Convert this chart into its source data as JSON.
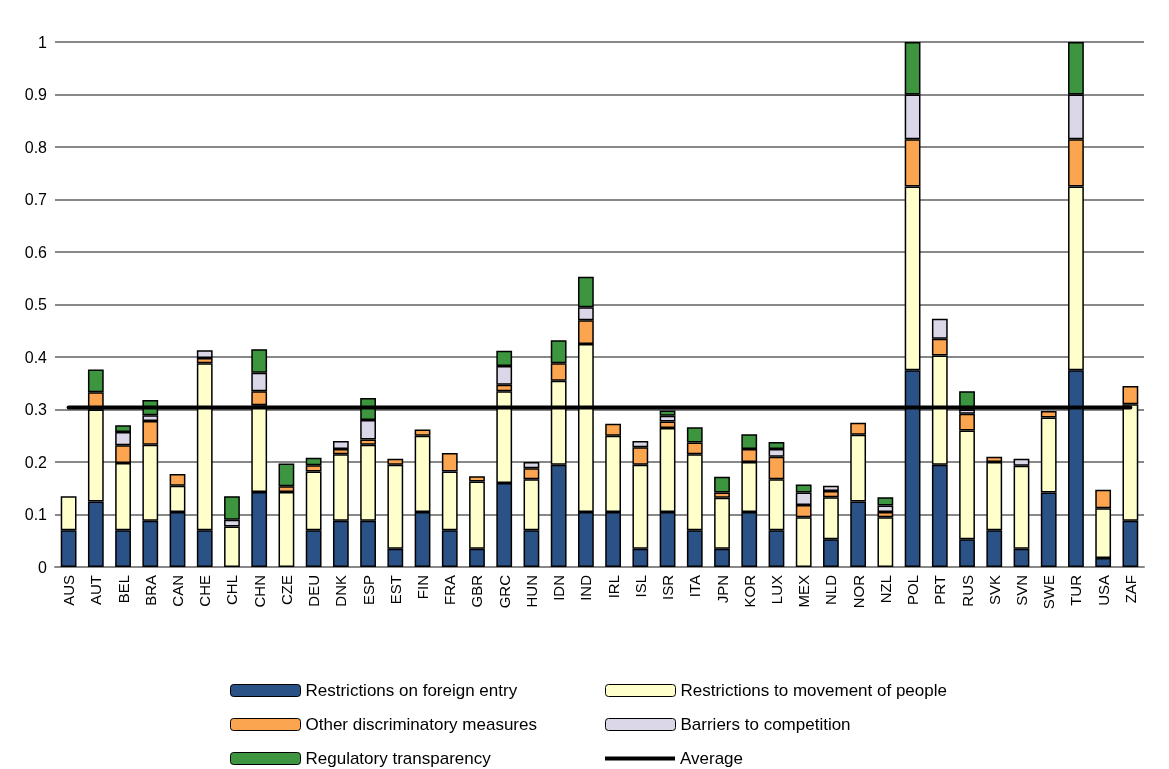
{
  "chart_data": {
    "type": "bar",
    "stacked": true,
    "categories": [
      "AUS",
      "AUT",
      "BEL",
      "BRA",
      "CAN",
      "CHE",
      "CHL",
      "CHN",
      "CZE",
      "DEU",
      "DNK",
      "ESP",
      "EST",
      "FIN",
      "FRA",
      "GBR",
      "GRC",
      "HUN",
      "IDN",
      "IND",
      "IRL",
      "ISL",
      "ISR",
      "ITA",
      "JPN",
      "KOR",
      "LUX",
      "MEX",
      "NLD",
      "NOR",
      "NZL",
      "POL",
      "PRT",
      "RUS",
      "SVK",
      "SVN",
      "SWE",
      "TUR",
      "USA",
      "ZAF"
    ],
    "series": [
      {
        "name": "Restrictions on foreign entry",
        "color": "#2a5286",
        "values": [
          0.07,
          0.125,
          0.07,
          0.088,
          0.105,
          0.07,
          0,
          0.143,
          0,
          0.07,
          0.088,
          0.088,
          0.035,
          0.105,
          0.07,
          0.035,
          0.16,
          0.07,
          0.195,
          0.105,
          0.105,
          0.035,
          0.105,
          0.07,
          0.035,
          0.105,
          0.07,
          0,
          0.053,
          0.125,
          0,
          0.375,
          0.195,
          0.053,
          0.07,
          0.035,
          0.142,
          0.375,
          0.017,
          0.088
        ]
      },
      {
        "name": "Restrictions to movement of people",
        "color": "#ffffcc",
        "values": [
          0.065,
          0.175,
          0.128,
          0.145,
          0.05,
          0.318,
          0.077,
          0.165,
          0.143,
          0.112,
          0.127,
          0.145,
          0.16,
          0.145,
          0.112,
          0.128,
          0.175,
          0.097,
          0.16,
          0.32,
          0.145,
          0.16,
          0.16,
          0.145,
          0.097,
          0.095,
          0.097,
          0.095,
          0.08,
          0.127,
          0.095,
          0.35,
          0.208,
          0.207,
          0.13,
          0.158,
          0.143,
          0.35,
          0.095,
          0.222
        ]
      },
      {
        "name": "Other discriminatory measures",
        "color": "#fba550",
        "values": [
          0,
          0.033,
          0.034,
          0.045,
          0.022,
          0.01,
          0,
          0.027,
          0.011,
          0.012,
          0.01,
          0.01,
          0.011,
          0.012,
          0.035,
          0.01,
          0.012,
          0.021,
          0.033,
          0.045,
          0.023,
          0.033,
          0.012,
          0.022,
          0.01,
          0.025,
          0.043,
          0.023,
          0.012,
          0.023,
          0.01,
          0.09,
          0.032,
          0.032,
          0.01,
          0,
          0.012,
          0.09,
          0.035,
          0.035
        ]
      },
      {
        "name": "Barriers to competition",
        "color": "#dcd7e8",
        "values": [
          0,
          0,
          0.025,
          0.011,
          0,
          0.015,
          0.013,
          0.035,
          0,
          0,
          0.015,
          0.037,
          0,
          0,
          0,
          0,
          0.036,
          0.012,
          0,
          0.025,
          0,
          0.012,
          0.011,
          0,
          0,
          0,
          0.015,
          0.024,
          0.01,
          0,
          0.012,
          0.085,
          0.038,
          0.008,
          0,
          0.013,
          0,
          0.085,
          0,
          0
        ]
      },
      {
        "name": "Regulatory transparency",
        "color": "#3d9540",
        "values": [
          0,
          0.043,
          0.013,
          0.029,
          0,
          0,
          0.045,
          0.045,
          0.043,
          0.014,
          0,
          0.042,
          0,
          0,
          0,
          0,
          0.029,
          0,
          0.044,
          0.058,
          0,
          0,
          0.01,
          0.029,
          0.03,
          0.028,
          0.013,
          0.015,
          0,
          0,
          0.016,
          0.1,
          0,
          0.035,
          0,
          0,
          0,
          0.1,
          0,
          0
        ]
      },
      {
        "name": "Average",
        "type": "line",
        "color": "#000000",
        "values": [
          0.304,
          0.304,
          0.304,
          0.304,
          0.304,
          0.304,
          0.304,
          0.304,
          0.304,
          0.304,
          0.304,
          0.304,
          0.304,
          0.304,
          0.304,
          0.304,
          0.304,
          0.304,
          0.304,
          0.304,
          0.304,
          0.304,
          0.304,
          0.304,
          0.304,
          0.304,
          0.304,
          0.304,
          0.304,
          0.304,
          0.304,
          0.304,
          0.304,
          0.304,
          0.304,
          0.304,
          0.304,
          0.304,
          0.304,
          0.304
        ]
      }
    ],
    "ylim": [
      0,
      1
    ],
    "yticks": [
      0,
      0.1,
      0.2,
      0.3,
      0.4,
      0.5,
      0.6,
      0.7,
      0.8,
      0.9,
      1
    ],
    "grid": "y",
    "legend": "bottom",
    "marker": "none",
    "line_style": "solid"
  }
}
